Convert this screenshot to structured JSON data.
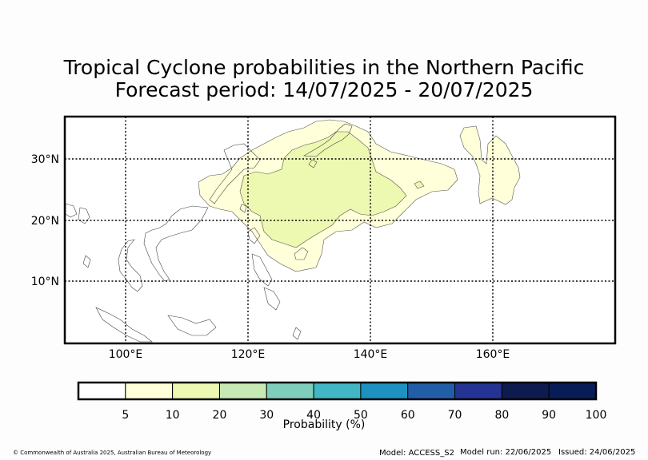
{
  "title": "Tropical Cyclone probabilities in the Northern Pacific",
  "subtitle": "Forecast period: 14/07/2025 - 20/07/2025",
  "map": {
    "lon_range": [
      90,
      180
    ],
    "lat_range": [
      0,
      37
    ],
    "lat_labels": [
      "10°N",
      "20°N",
      "30°N"
    ],
    "lon_labels": [
      "100°E",
      "120°E",
      "140°E",
      "160°E"
    ],
    "probability_regions": [
      {
        "level": "5-10",
        "color": "#ffffd9",
        "description": "outer contour"
      },
      {
        "level": "10-20",
        "color": "#eef8b8",
        "description": "inner contour"
      }
    ]
  },
  "colorbar": {
    "title": "Probability (%)",
    "ticks": [
      "5",
      "10",
      "20",
      "30",
      "40",
      "50",
      "60",
      "70",
      "80",
      "90",
      "100"
    ],
    "colors": [
      "#ffffff",
      "#ffffd9",
      "#edf8b1",
      "#c7e9b4",
      "#7fcdbb",
      "#41b6c4",
      "#1d91c0",
      "#225ea8",
      "#253494",
      "#0d1b4f",
      "#081d58"
    ]
  },
  "footer": {
    "copyright": "© Commonwealth of Australia 2025, Australian Bureau of Meteorology",
    "model": "Model: ACCESS_S2",
    "run": "Model run: 22/06/2025",
    "issued": "Issued: 24/06/2025"
  }
}
